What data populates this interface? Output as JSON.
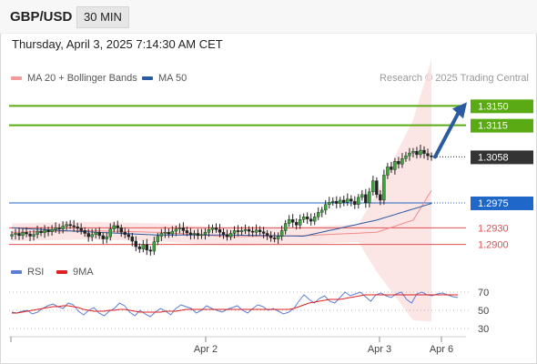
{
  "header": {
    "symbol": "GBP/USD",
    "timeframe": "30 MIN"
  },
  "timestamp": "Thursday, April 3, 2025 7:14:30 AM CET",
  "legend": {
    "ma20": {
      "label": "MA 20 + Bollinger Bands",
      "color": "#f08a8a"
    },
    "ma50": {
      "label": "MA 50",
      "color": "#2a5aa0"
    }
  },
  "credit": "Research © 2025 Trading Central",
  "rsi_legend": {
    "rsi": {
      "label": "RSI",
      "color": "#5b7fd6"
    },
    "ma9": {
      "label": "9MA",
      "color": "#e02020"
    }
  },
  "chart_data": [
    {
      "type": "candlestick",
      "ylim": [
        1.2865,
        1.3185
      ],
      "levels": [
        {
          "value": 1.315,
          "label": "1.3150",
          "kind": "target",
          "color": "#5aaa14"
        },
        {
          "value": 1.3115,
          "label": "1.3115",
          "kind": "target",
          "color": "#5aaa14"
        },
        {
          "value": 1.3058,
          "label": "1.3058",
          "kind": "current",
          "color": "#333333"
        },
        {
          "value": 1.2975,
          "label": "1.2975",
          "kind": "pivot",
          "color": "#1f68c9"
        },
        {
          "value": 1.293,
          "label": "1.2930",
          "kind": "support",
          "color": "#e05050"
        },
        {
          "value": 1.29,
          "label": "1.2900",
          "kind": "support",
          "color": "#e05050"
        }
      ],
      "x_ticks": [
        "Apr 2",
        "Apr 3",
        "Apr 6"
      ],
      "candles_close": [
        1.2918,
        1.292,
        1.2916,
        1.2922,
        1.2919,
        1.2915,
        1.2918,
        1.2924,
        1.2921,
        1.2926,
        1.2923,
        1.2927,
        1.293,
        1.2928,
        1.2933,
        1.2936,
        1.2934,
        1.2932,
        1.2929,
        1.2925,
        1.292,
        1.2914,
        1.2918,
        1.2922,
        1.2916,
        1.291,
        1.2914,
        1.2928,
        1.2934,
        1.293,
        1.2922,
        1.2918,
        1.2914,
        1.2906,
        1.2896,
        1.2892,
        1.29,
        1.289,
        1.2888,
        1.2905,
        1.2915,
        1.292,
        1.2922,
        1.2919,
        1.2924,
        1.2928,
        1.293,
        1.2925,
        1.2921,
        1.2918,
        1.292,
        1.2916,
        1.2918,
        1.2922,
        1.2927,
        1.293,
        1.2927,
        1.2922,
        1.2918,
        1.2914,
        1.292,
        1.2925,
        1.2923,
        1.2925,
        1.2927,
        1.2924,
        1.2922,
        1.2926,
        1.2923,
        1.292,
        1.2916,
        1.2912,
        1.291,
        1.2915,
        1.2925,
        1.2938,
        1.2945,
        1.294,
        1.2935,
        1.2945,
        1.295,
        1.2946,
        1.2942,
        1.295,
        1.2958,
        1.2962,
        1.2972,
        1.2976,
        1.2978,
        1.2974,
        1.298,
        1.2976,
        1.2982,
        1.2978,
        1.2972,
        1.2985,
        1.299,
        1.2975,
        1.2995,
        1.3015,
        1.299,
        1.298,
        1.3025,
        1.304,
        1.3035,
        1.305,
        1.3045,
        1.3055,
        1.306,
        1.3065,
        1.3068,
        1.3062,
        1.307,
        1.3064,
        1.306,
        1.3058
      ],
      "ma20_path": [
        [
          0,
          1.2922
        ],
        [
          20,
          1.2925
        ],
        [
          40,
          1.2922
        ],
        [
          60,
          1.2914
        ],
        [
          80,
          1.2916
        ],
        [
          100,
          1.2922
        ],
        [
          110,
          1.2944
        ],
        [
          116,
          1.3008
        ]
      ],
      "ma50_path": [
        [
          0,
          1.293
        ],
        [
          20,
          1.2923
        ],
        [
          40,
          1.2917
        ],
        [
          60,
          1.2917
        ],
        [
          80,
          1.2915
        ],
        [
          100,
          1.2944
        ],
        [
          116,
          1.2976
        ]
      ],
      "arrow": {
        "from_value": 1.3058,
        "to_value": 1.315
      }
    },
    {
      "type": "line",
      "ylim": [
        20,
        80
      ],
      "y_ticks": [
        70,
        50,
        30
      ],
      "series": [
        {
          "name": "RSI",
          "values": [
            48,
            47,
            49,
            50,
            46,
            48,
            52,
            55,
            57,
            54,
            52,
            58,
            56,
            49,
            45,
            50,
            53,
            47,
            44,
            49,
            52,
            58,
            55,
            48,
            44,
            50,
            46,
            43,
            48,
            52,
            49,
            45,
            52,
            56,
            54,
            52,
            47,
            50,
            55,
            52,
            50,
            48,
            51,
            53,
            55,
            50,
            47,
            52,
            56,
            54,
            50,
            52,
            49,
            46,
            48,
            52,
            60,
            67,
            62,
            58,
            63,
            66,
            60,
            58,
            64,
            70,
            66,
            68,
            70,
            65,
            60,
            67,
            69,
            66,
            64,
            68,
            70,
            62,
            58,
            68,
            70,
            67,
            66,
            68,
            69,
            67,
            65,
            64
          ]
        },
        {
          "name": "9MA",
          "values": [
            47,
            47,
            48,
            49,
            50,
            51,
            52,
            53,
            54,
            54,
            55,
            55,
            54,
            53,
            51,
            50,
            49,
            49,
            49,
            50,
            50,
            51,
            51,
            50,
            49,
            48,
            48,
            48,
            48,
            48,
            49,
            49,
            49,
            50,
            51,
            51,
            51,
            51,
            51,
            51,
            51,
            51,
            51,
            51,
            51,
            51,
            51,
            51,
            51,
            51,
            51,
            51,
            51,
            51,
            51,
            52,
            54,
            56,
            58,
            59,
            60,
            61,
            62,
            62,
            62,
            63,
            64,
            65,
            66,
            67,
            67,
            67,
            67,
            67,
            67,
            67,
            67,
            67,
            67,
            67,
            67,
            67,
            67,
            67,
            67,
            67,
            67,
            67
          ]
        }
      ]
    }
  ]
}
